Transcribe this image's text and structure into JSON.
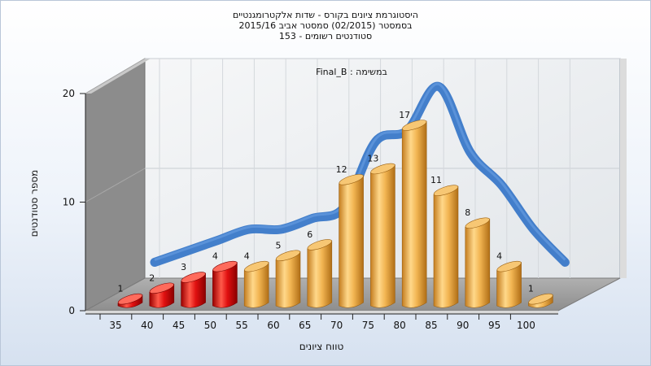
{
  "chart_data": {
    "type": "bar",
    "title_lines": [
      "היסטוגרמת ציונים בקורס - שדות אלקטרומגנטיים",
      "בסמסטר  (02/2015)  סמסטר אביב 2015/16",
      "סטודנטים רשומים - 153"
    ],
    "xlabel": "טווח ציונים",
    "ylabel": "מספר סטודנטים",
    "legend_label": "Final_B : במשימה",
    "categories": [
      "35",
      "40",
      "45",
      "50",
      "55",
      "60",
      "65",
      "70",
      "75",
      "80",
      "85",
      "90",
      "95",
      "100"
    ],
    "values": [
      1,
      2,
      3,
      4,
      4,
      5,
      6,
      12,
      13,
      17,
      11,
      8,
      4,
      1
    ],
    "y_ticks": [
      0,
      10,
      20
    ],
    "ylim": [
      0,
      20
    ],
    "grid": true,
    "trend_line": true,
    "colors": {
      "fail_bar": "#e01010",
      "pass_bar": "#f0b24a",
      "trend": "#3a78c8",
      "back_wall": "#eef0f2",
      "side_wall": "#8a8a8a",
      "floor": "#a8a8a8"
    },
    "fail_categories": [
      "35",
      "40",
      "45",
      "50"
    ]
  }
}
